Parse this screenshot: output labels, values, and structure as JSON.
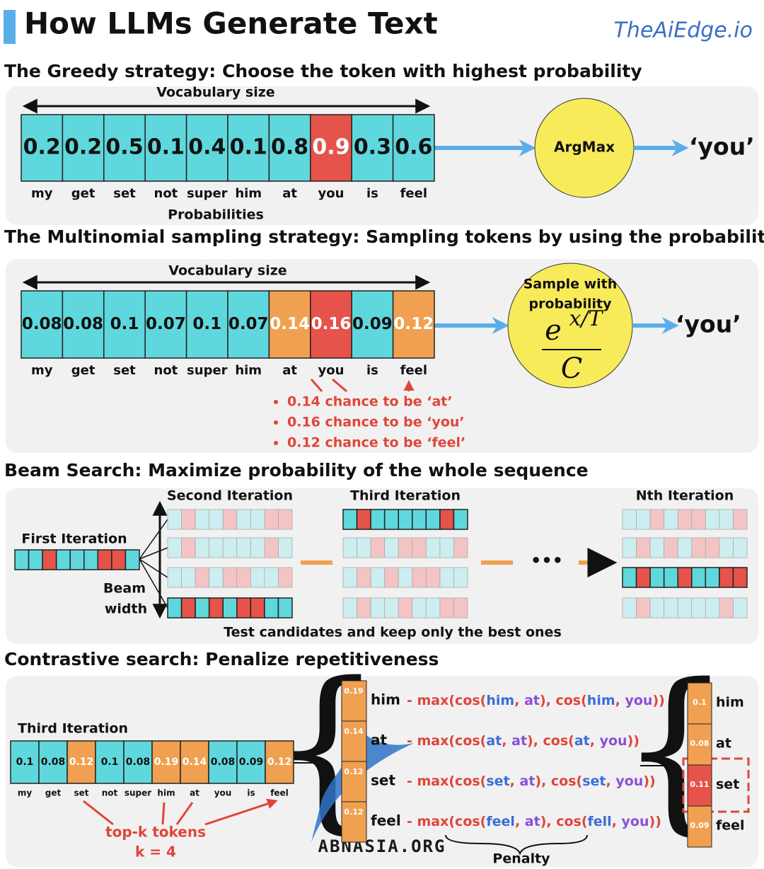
{
  "header": {
    "title": "How LLMs Generate Text",
    "brand": "TheAiEdge.io"
  },
  "greedy": {
    "heading": "The Greedy strategy: Choose the token with highest probability",
    "vocab_label": "Vocabulary size",
    "probs": [
      0.2,
      0.2,
      0.5,
      0.1,
      0.4,
      0.1,
      0.8,
      0.9,
      0.3,
      0.6
    ],
    "tokens": [
      "my",
      "get",
      "set",
      "not",
      "super",
      "him",
      "at",
      "you",
      "is",
      "feel"
    ],
    "probs_label": "Probabilities",
    "operator": "ArgMax",
    "output": "‘you’"
  },
  "multinomial": {
    "heading": "The Multinomial sampling strategy: Sampling tokens by using the probability",
    "vocab_label": "Vocabulary size",
    "probs": [
      0.08,
      0.08,
      0.1,
      0.07,
      0.1,
      0.07,
      0.14,
      0.16,
      0.09,
      0.12
    ],
    "tokens": [
      "my",
      "get",
      "set",
      "not",
      "super",
      "him",
      "at",
      "you",
      "is",
      "feel"
    ],
    "operator_lines": [
      "Sample with",
      "probability"
    ],
    "formula": {
      "base": "e",
      "exponent": "x/T",
      "denominator": "C"
    },
    "output": "‘you’",
    "bullets": [
      "0.14 chance to be ‘at’",
      "0.16 chance to be ‘you’",
      "0.12 chance to be ‘feel’"
    ]
  },
  "beam": {
    "heading": "Beam Search: Maximize probability of the whole sequence",
    "first": "First Iteration",
    "second": "Second Iteration",
    "third": "Third Iteration",
    "nth": "Nth Iteration",
    "beam_label": [
      "Beam",
      "width"
    ],
    "ellipsis": "•••",
    "caption": "Test candidates and keep only the best ones"
  },
  "contrastive": {
    "heading": "Contrastive search: Penalize repetitiveness",
    "iteration": "Third Iteration",
    "probs": [
      0.1,
      0.08,
      0.12,
      0.1,
      0.08,
      0.19,
      0.14,
      0.08,
      0.09,
      0.12
    ],
    "tokens": [
      "my",
      "get",
      "set",
      "not",
      "super",
      "him",
      "at",
      "you",
      "is",
      "feel"
    ],
    "topk_label": "top-k tokens",
    "k_label": "k = 4",
    "candidates": [
      {
        "prob": 0.19,
        "token": "him",
        "penalty": [
          "- max(cos(",
          "him",
          ", ",
          "at",
          "), cos(",
          "him",
          ", ",
          "you",
          "))"
        ]
      },
      {
        "prob": 0.14,
        "token": "at",
        "penalty": [
          "- max(cos(",
          "at",
          ", ",
          "at",
          "), cos(",
          "at",
          ", ",
          "you",
          "))"
        ]
      },
      {
        "prob": 0.12,
        "token": "set",
        "penalty": [
          "- max(cos(",
          "set",
          ", ",
          "at",
          "), cos(",
          "set",
          ", ",
          "you",
          "))"
        ]
      },
      {
        "prob": 0.12,
        "token": "feel",
        "penalty": [
          "- max(cos(",
          "feel",
          ", ",
          "at",
          "), cos(",
          "fell",
          ", ",
          "you",
          "))"
        ]
      }
    ],
    "penalty_label": "Penalty",
    "result": [
      {
        "prob": 0.1,
        "token": "him"
      },
      {
        "prob": 0.08,
        "token": "at"
      },
      {
        "prob": 0.11,
        "token": "set"
      },
      {
        "prob": 0.09,
        "token": "feel"
      }
    ],
    "watermark": "ABNASIA.ORG"
  }
}
